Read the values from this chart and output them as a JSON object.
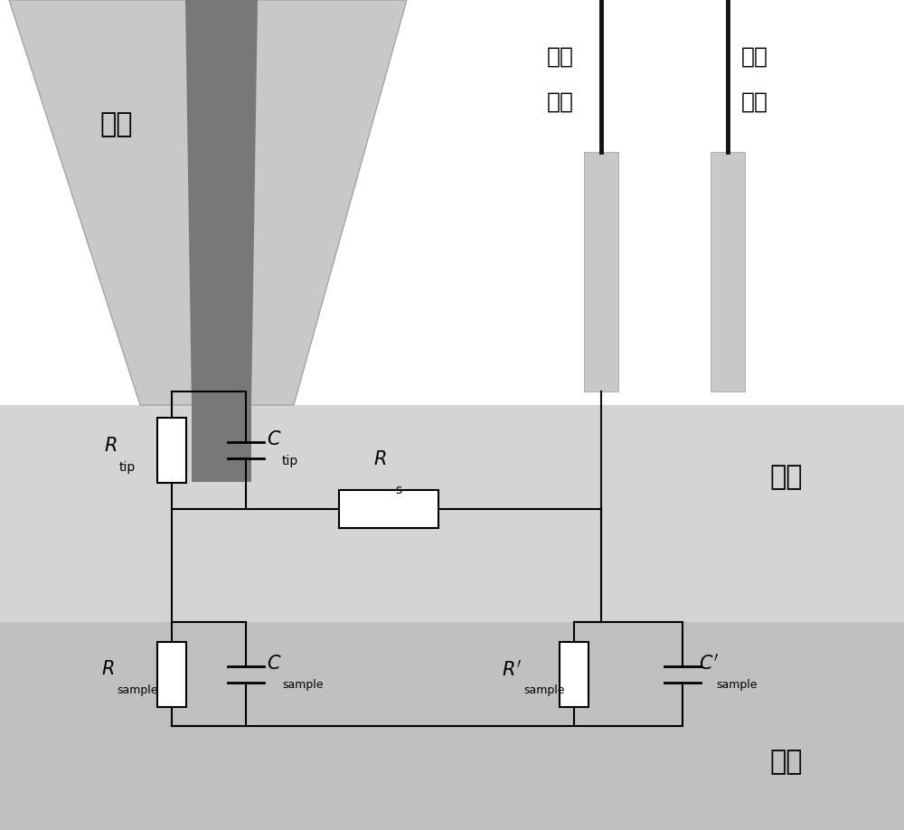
{
  "bg_white": "#ffffff",
  "bg_solution": "#d4d4d4",
  "bg_sample": "#c0c0c0",
  "probe_light": "#c8c8c8",
  "probe_dark": "#787878",
  "electrode_gray": "#c8c8c8",
  "electrode_black": "#111111",
  "line_color": "#000000",
  "component_fill": "#ffffff",
  "label_probe": "探针",
  "label_ref_1": "参比",
  "label_ref_2": "电极",
  "label_aux_1": "辅助",
  "label_aux_2": "电极",
  "label_solution": "溶液",
  "label_sample_region": "样品",
  "figsize": [
    10.0,
    9.18
  ],
  "dpi": 100
}
